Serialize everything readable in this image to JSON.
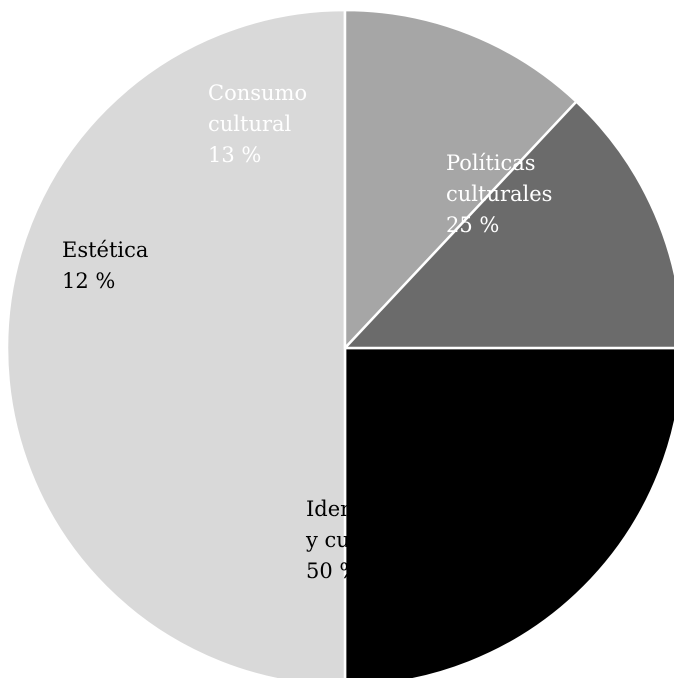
{
  "chart_data": {
    "type": "pie",
    "start_angle_deg": 0,
    "direction": "clockwise",
    "slices": [
      {
        "label_lines": [
          "Políticas",
          "culturales"
        ],
        "percent_label": "25 %",
        "value": 25,
        "color": "#000000",
        "text_color": "#ffffff"
      },
      {
        "label_lines": [
          "Identidad",
          "y cultura"
        ],
        "percent_label": "50 %",
        "value": 50,
        "color": "#d9d9d9",
        "text_color": "#000000"
      },
      {
        "label_lines": [
          "Estética"
        ],
        "percent_label": "12 %",
        "value": 12,
        "color": "#a6a6a6",
        "text_color": "#000000"
      },
      {
        "label_lines": [
          "Consumo",
          "cultural"
        ],
        "percent_label": "13 %",
        "value": 13,
        "color": "#6b6b6b",
        "text_color": "#ffffff"
      }
    ]
  }
}
